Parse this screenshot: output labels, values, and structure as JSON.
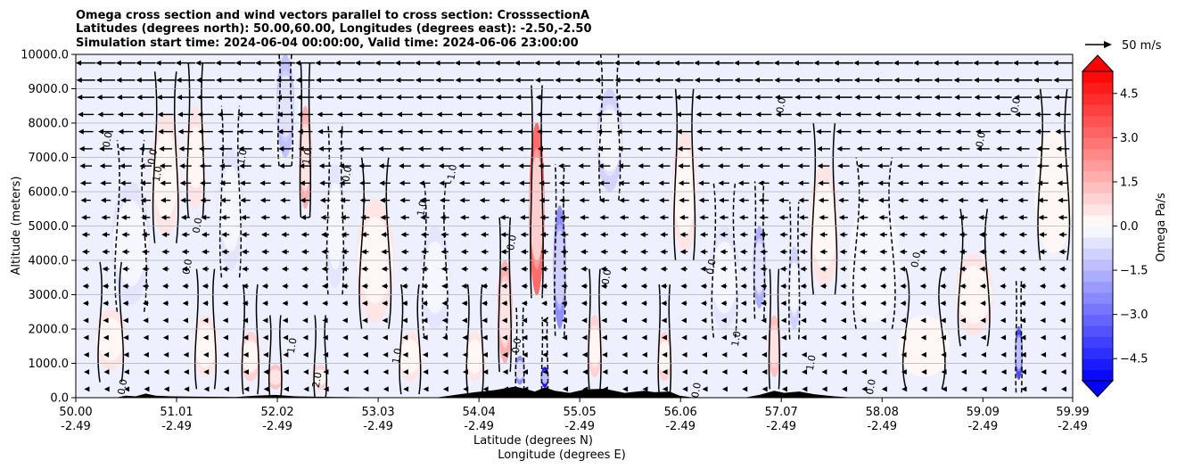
{
  "chart_data": {
    "type": "heatmap",
    "title_lines": [
      "Omega cross section and wind vectors parallel to cross section: CrosssectionA",
      "Latitudes (degrees north): 50.00,60.00, Longitudes (degrees east): -2.50,-2.50",
      "Simulation start time: 2024-06-04 00:00:00, Valid time: 2024-06-06 23:00:00"
    ],
    "ylabel": "Altitude (meters)",
    "xlabel_lines": [
      "Latitude (degrees N)",
      "Longitude (degrees E)"
    ],
    "ylim": [
      0,
      10000
    ],
    "xlim": [
      50.0,
      59.99
    ],
    "y_ticks": [
      0,
      1000,
      2000,
      3000,
      4000,
      5000,
      6000,
      7000,
      8000,
      9000,
      10000
    ],
    "y_tick_labels": [
      "0.0",
      "1000.0",
      "2000.0",
      "3000.0",
      "4000.0",
      "5000.0",
      "6000.0",
      "7000.0",
      "8000.0",
      "9000.0",
      "10000.0"
    ],
    "x_ticks": [
      {
        "lat": 50.0,
        "lat_label": "50.00",
        "lon_label": "-2.49"
      },
      {
        "lat": 51.01,
        "lat_label": "51.01",
        "lon_label": "-2.49"
      },
      {
        "lat": 52.02,
        "lat_label": "52.02",
        "lon_label": "-2.49"
      },
      {
        "lat": 53.03,
        "lat_label": "53.03",
        "lon_label": "-2.49"
      },
      {
        "lat": 54.04,
        "lat_label": "54.04",
        "lon_label": "-2.49"
      },
      {
        "lat": 55.05,
        "lat_label": "55.05",
        "lon_label": "-2.49"
      },
      {
        "lat": 56.06,
        "lat_label": "56.06",
        "lon_label": "-2.49"
      },
      {
        "lat": 57.07,
        "lat_label": "57.07",
        "lon_label": "-2.49"
      },
      {
        "lat": 58.08,
        "lat_label": "58.08",
        "lon_label": "-2.49"
      },
      {
        "lat": 59.09,
        "lat_label": "59.09",
        "lon_label": "-2.49"
      },
      {
        "lat": 59.99,
        "lat_label": "59.99",
        "lon_label": "-2.49"
      }
    ],
    "grid": "horizontal",
    "colorbar": {
      "label": "Omega Pa/s",
      "min": -5.25,
      "max": 5.25,
      "step": 0.375,
      "ticks": [
        4.5,
        3.0,
        1.5,
        0.0,
        -1.5,
        -3.0,
        -4.5
      ],
      "tick_labels": [
        "4.5",
        "3.0",
        "1.5",
        "0.0",
        "−1.5",
        "−3.0",
        "−4.5"
      ],
      "extend": "both",
      "colormap": "bwr"
    },
    "quiver_key": {
      "label": "50 m/s",
      "speed": 50
    },
    "contour_levels": [
      -1.0,
      0.0,
      1.0
    ],
    "omega_features": [
      {
        "lat": 50.35,
        "alt": 1700,
        "value": 0.6,
        "width": 0.12,
        "height": 1500
      },
      {
        "lat": 50.55,
        "alt": 4500,
        "value": -0.5,
        "width": 0.15,
        "height": 3000
      },
      {
        "lat": 50.9,
        "alt": 6500,
        "value": 0.6,
        "width": 0.12,
        "height": 3000
      },
      {
        "lat": 51.2,
        "alt": 7000,
        "value": 0.7,
        "width": 0.08,
        "height": 2500
      },
      {
        "lat": 51.3,
        "alt": 1500,
        "value": 0.6,
        "width": 0.1,
        "height": 1500
      },
      {
        "lat": 51.55,
        "alt": 5500,
        "value": -0.5,
        "width": 0.1,
        "height": 3000
      },
      {
        "lat": 51.75,
        "alt": 1200,
        "value": 0.8,
        "width": 0.08,
        "height": 1200
      },
      {
        "lat": 52.0,
        "alt": 600,
        "value": 1.4,
        "width": 0.06,
        "height": 600
      },
      {
        "lat": 52.1,
        "alt": 8500,
        "value": -1.5,
        "width": 0.07,
        "height": 2500
      },
      {
        "lat": 52.3,
        "alt": 7000,
        "value": 1.7,
        "width": 0.05,
        "height": 2500
      },
      {
        "lat": 52.45,
        "alt": 600,
        "value": 1.0,
        "width": 0.06,
        "height": 600
      },
      {
        "lat": 52.6,
        "alt": 5000,
        "value": -0.6,
        "width": 0.08,
        "height": 3000
      },
      {
        "lat": 53.0,
        "alt": 4000,
        "value": 0.4,
        "width": 0.15,
        "height": 3000
      },
      {
        "lat": 53.35,
        "alt": 1200,
        "value": 0.5,
        "width": 0.1,
        "height": 1200
      },
      {
        "lat": 53.6,
        "alt": 3500,
        "value": -0.4,
        "width": 0.12,
        "height": 2500
      },
      {
        "lat": 54.0,
        "alt": 1200,
        "value": 0.6,
        "width": 0.08,
        "height": 1200
      },
      {
        "lat": 54.3,
        "alt": 2500,
        "value": 1.5,
        "width": 0.06,
        "height": 2500
      },
      {
        "lat": 54.45,
        "alt": 800,
        "value": -2.5,
        "width": 0.04,
        "height": 700
      },
      {
        "lat": 54.62,
        "alt": 5500,
        "value": 3.2,
        "width": 0.06,
        "height": 4200
      },
      {
        "lat": 54.7,
        "alt": 600,
        "value": -5.0,
        "width": 0.03,
        "height": 500
      },
      {
        "lat": 54.85,
        "alt": 3800,
        "value": -2.6,
        "width": 0.05,
        "height": 3000
      },
      {
        "lat": 55.2,
        "alt": 1500,
        "value": 1.0,
        "width": 0.06,
        "height": 1500
      },
      {
        "lat": 55.35,
        "alt": 7500,
        "value": -1.0,
        "width": 0.1,
        "height": 2500
      },
      {
        "lat": 55.9,
        "alt": 1200,
        "value": 0.8,
        "width": 0.06,
        "height": 1200
      },
      {
        "lat": 56.1,
        "alt": 6000,
        "value": 0.5,
        "width": 0.1,
        "height": 3000
      },
      {
        "lat": 56.5,
        "alt": 3500,
        "value": -0.5,
        "width": 0.12,
        "height": 2500
      },
      {
        "lat": 56.85,
        "alt": 3800,
        "value": -1.8,
        "width": 0.05,
        "height": 2000
      },
      {
        "lat": 57.0,
        "alt": 1500,
        "value": 1.3,
        "width": 0.05,
        "height": 1500
      },
      {
        "lat": 57.2,
        "alt": 3200,
        "value": -1.0,
        "width": 0.05,
        "height": 2000
      },
      {
        "lat": 57.5,
        "alt": 5000,
        "value": 0.4,
        "width": 0.12,
        "height": 3000
      },
      {
        "lat": 58.0,
        "alt": 4000,
        "value": -0.3,
        "width": 0.2,
        "height": 3000
      },
      {
        "lat": 58.5,
        "alt": 1500,
        "value": 0.3,
        "width": 0.2,
        "height": 1500
      },
      {
        "lat": 59.0,
        "alt": 3000,
        "value": 0.4,
        "width": 0.15,
        "height": 2000
      },
      {
        "lat": 59.45,
        "alt": 1300,
        "value": -3.8,
        "width": 0.03,
        "height": 1300
      },
      {
        "lat": 59.8,
        "alt": 6000,
        "value": 0.3,
        "width": 0.15,
        "height": 3000
      }
    ],
    "terrain": [
      [
        50.0,
        0
      ],
      [
        50.4,
        0
      ],
      [
        50.5,
        60
      ],
      [
        50.6,
        40
      ],
      [
        50.7,
        120
      ],
      [
        50.8,
        60
      ],
      [
        50.95,
        40
      ],
      [
        51.2,
        30
      ],
      [
        51.6,
        20
      ],
      [
        51.8,
        60
      ],
      [
        52.0,
        80
      ],
      [
        52.2,
        40
      ],
      [
        52.4,
        30
      ],
      [
        52.6,
        20
      ],
      [
        53.0,
        10
      ],
      [
        53.6,
        0
      ],
      [
        53.8,
        80
      ],
      [
        54.0,
        160
      ],
      [
        54.2,
        220
      ],
      [
        54.4,
        320
      ],
      [
        54.5,
        260
      ],
      [
        54.6,
        180
      ],
      [
        54.7,
        300
      ],
      [
        54.8,
        200
      ],
      [
        54.95,
        140
      ],
      [
        55.1,
        240
      ],
      [
        55.3,
        260
      ],
      [
        55.5,
        140
      ],
      [
        55.7,
        200
      ],
      [
        55.8,
        160
      ],
      [
        55.95,
        180
      ],
      [
        56.05,
        60
      ],
      [
        56.2,
        0
      ],
      [
        56.7,
        0
      ],
      [
        56.85,
        80
      ],
      [
        57.0,
        200
      ],
      [
        57.1,
        140
      ],
      [
        57.25,
        180
      ],
      [
        57.4,
        100
      ],
      [
        57.6,
        40
      ],
      [
        57.8,
        0
      ],
      [
        59.99,
        0
      ]
    ],
    "wind_profile": [
      {
        "alt": 250,
        "speed": -6
      },
      {
        "alt": 750,
        "speed": -7
      },
      {
        "alt": 1250,
        "speed": -8
      },
      {
        "alt": 1750,
        "speed": -9
      },
      {
        "alt": 2250,
        "speed": -10
      },
      {
        "alt": 2750,
        "speed": -11
      },
      {
        "alt": 3250,
        "speed": -12
      },
      {
        "alt": 3750,
        "speed": -13
      },
      {
        "alt": 4250,
        "speed": -14
      },
      {
        "alt": 4750,
        "speed": -15
      },
      {
        "alt": 5250,
        "speed": -17
      },
      {
        "alt": 5750,
        "speed": -19
      },
      {
        "alt": 6250,
        "speed": -21
      },
      {
        "alt": 6750,
        "speed": -23
      },
      {
        "alt": 7250,
        "speed": -25
      },
      {
        "alt": 7750,
        "speed": -28
      },
      {
        "alt": 8250,
        "speed": -30
      },
      {
        "alt": 8750,
        "speed": -33
      },
      {
        "alt": 9250,
        "speed": -35
      },
      {
        "alt": 9750,
        "speed": -37
      }
    ],
    "contour_labels": [
      {
        "lat": 50.35,
        "alt": 7500,
        "text": "0.0"
      },
      {
        "lat": 50.8,
        "alt": 7000,
        "text": "0.0"
      },
      {
        "lat": 50.85,
        "alt": 6500,
        "text": "1.0"
      },
      {
        "lat": 51.25,
        "alt": 5000,
        "text": "0.0"
      },
      {
        "lat": 51.15,
        "alt": 3800,
        "text": "0.0"
      },
      {
        "lat": 51.7,
        "alt": 7000,
        "text": "1.0"
      },
      {
        "lat": 52.35,
        "alt": 7000,
        "text": "1.0"
      },
      {
        "lat": 52.75,
        "alt": 6500,
        "text": "0.0"
      },
      {
        "lat": 53.8,
        "alt": 6500,
        "text": "-1.0"
      },
      {
        "lat": 53.5,
        "alt": 5500,
        "text": "1.0"
      },
      {
        "lat": 54.4,
        "alt": 4500,
        "text": "0.0"
      },
      {
        "lat": 55.35,
        "alt": 3500,
        "text": "0.0"
      },
      {
        "lat": 56.4,
        "alt": 3800,
        "text": "0.0"
      },
      {
        "lat": 57.1,
        "alt": 8500,
        "text": "0.0"
      },
      {
        "lat": 58.45,
        "alt": 4000,
        "text": "0.0"
      },
      {
        "lat": 59.1,
        "alt": 7500,
        "text": "0.0"
      },
      {
        "lat": 59.45,
        "alt": 8500,
        "text": "0.0"
      },
      {
        "lat": 52.2,
        "alt": 1500,
        "text": "1.0"
      },
      {
        "lat": 53.25,
        "alt": 1200,
        "text": "1.0"
      },
      {
        "lat": 54.45,
        "alt": 1500,
        "text": "0.0"
      },
      {
        "lat": 56.65,
        "alt": 1700,
        "text": "1.0"
      },
      {
        "lat": 57.4,
        "alt": 1000,
        "text": "1.0"
      },
      {
        "lat": 58.0,
        "alt": 300,
        "text": "0.0"
      },
      {
        "lat": 52.45,
        "alt": 500,
        "text": "2.0"
      },
      {
        "lat": 50.5,
        "alt": 300,
        "text": "0.0"
      },
      {
        "lat": 56.25,
        "alt": 200,
        "text": "0.0"
      }
    ]
  }
}
